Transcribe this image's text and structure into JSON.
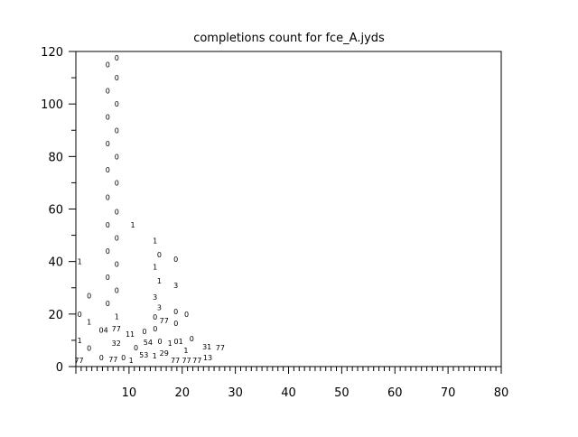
{
  "chart_data": {
    "type": "scatter",
    "title": "completions count for fce_A.jyds",
    "xlabel": "",
    "ylabel": "",
    "xlim": [
      0,
      80
    ],
    "ylim": [
      0,
      120
    ],
    "x_ticks": [
      10,
      20,
      30,
      40,
      50,
      60,
      70,
      80
    ],
    "y_ticks": [
      0,
      20,
      40,
      60,
      80,
      100,
      120
    ],
    "grid": false,
    "points": [
      {
        "x": 6,
        "y": 115,
        "label": "0"
      },
      {
        "x": 6,
        "y": 105,
        "label": "0"
      },
      {
        "x": 6,
        "y": 95,
        "label": "0"
      },
      {
        "x": 6,
        "y": 85,
        "label": "0"
      },
      {
        "x": 6,
        "y": 75,
        "label": "0"
      },
      {
        "x": 6,
        "y": 64.5,
        "label": "0"
      },
      {
        "x": 6,
        "y": 54,
        "label": "0"
      },
      {
        "x": 6,
        "y": 44,
        "label": "0"
      },
      {
        "x": 6,
        "y": 34,
        "label": "0"
      },
      {
        "x": 6,
        "y": 24,
        "label": "0"
      },
      {
        "x": 7.7,
        "y": 120,
        "label": "0"
      },
      {
        "x": 7.7,
        "y": 110,
        "label": "0"
      },
      {
        "x": 7.7,
        "y": 100,
        "label": "0"
      },
      {
        "x": 7.7,
        "y": 90,
        "label": "0"
      },
      {
        "x": 7.7,
        "y": 80,
        "label": "0"
      },
      {
        "x": 7.7,
        "y": 70,
        "label": "0"
      },
      {
        "x": 7.7,
        "y": 59,
        "label": "0"
      },
      {
        "x": 7.7,
        "y": 49,
        "label": "0"
      },
      {
        "x": 7.7,
        "y": 39,
        "label": "0"
      },
      {
        "x": 7.7,
        "y": 29,
        "label": "0"
      },
      {
        "x": 7.7,
        "y": 19,
        "label": "1"
      },
      {
        "x": 0.7,
        "y": 40,
        "label": "1"
      },
      {
        "x": 10.7,
        "y": 54,
        "label": "1"
      },
      {
        "x": 2.5,
        "y": 27,
        "label": "0"
      },
      {
        "x": 0.7,
        "y": 20,
        "label": "0"
      },
      {
        "x": 2.5,
        "y": 17,
        "label": "1"
      },
      {
        "x": 5.2,
        "y": 14,
        "label": "04"
      },
      {
        "x": 0.7,
        "y": 10,
        "label": "1"
      },
      {
        "x": 2.5,
        "y": 7,
        "label": "0"
      },
      {
        "x": 7.6,
        "y": 9,
        "label": "32"
      },
      {
        "x": 4.8,
        "y": 3.5,
        "label": "0"
      },
      {
        "x": 6,
        "y": 2.8,
        "label": "77"
      },
      {
        "x": 6.9,
        "y": 3.5,
        "label": "0"
      },
      {
        "x": 0.6,
        "y": 0,
        "label": "77"
      },
      {
        "x": 14.9,
        "y": 48,
        "label": "1"
      },
      {
        "x": 15.7,
        "y": 45,
        "label": "0"
      },
      {
        "x": 18.8,
        "y": 41,
        "label": "0"
      },
      {
        "x": 14.9,
        "y": 38,
        "label": "1"
      },
      {
        "x": 15.7,
        "y": 35,
        "label": "1"
      },
      {
        "x": 18.8,
        "y": 31,
        "label": "3"
      },
      {
        "x": 14.9,
        "y": 26.5,
        "label": "3"
      },
      {
        "x": 15.7,
        "y": 25,
        "label": "3"
      },
      {
        "x": 18.8,
        "y": 21,
        "label": "0"
      },
      {
        "x": 19.8,
        "y": 20,
        "label": "0"
      },
      {
        "x": 10.2,
        "y": 12.4,
        "label": "11"
      },
      {
        "x": 12.9,
        "y": 13.4,
        "label": "0"
      },
      {
        "x": 13.9,
        "y": 14.4,
        "label": "0"
      },
      {
        "x": 14.9,
        "y": 16.5,
        "label": "0"
      },
      {
        "x": 16.6,
        "y": 17.5,
        "label": "77"
      },
      {
        "x": 17.8,
        "y": 16.5,
        "label": "0"
      },
      {
        "x": 15.8,
        "y": 14.4,
        "label": "0"
      },
      {
        "x": 19.3,
        "y": 9.7,
        "label": "01"
      },
      {
        "x": 20.7,
        "y": 8.6,
        "label": "1"
      },
      {
        "x": 21.8,
        "y": 10.7,
        "label": "0"
      },
      {
        "x": 16.6,
        "y": 7.6,
        "label": "29"
      },
      {
        "x": 17.7,
        "y": 6.5,
        "label": "1"
      },
      {
        "x": 14.8,
        "y": 6.5,
        "label": "1"
      },
      {
        "x": 13.8,
        "y": 4.5,
        "label": "53"
      },
      {
        "x": 15.6,
        "y": 4.5,
        "label": "54"
      },
      {
        "x": 10.4,
        "y": 2.4,
        "label": "1"
      },
      {
        "x": 11.3,
        "y": 2.4,
        "label": "0"
      },
      {
        "x": 12.7,
        "y": 2.4,
        "label": "77"
      },
      {
        "x": 24.8,
        "y": 3.4,
        "label": "13"
      },
      {
        "x": 18.7,
        "y": 0,
        "label": "77"
      },
      {
        "x": 19.8,
        "y": 0,
        "label": "77"
      },
      {
        "x": 21.6,
        "y": 0.4,
        "label": "31"
      },
      {
        "x": 22.8,
        "y": 0,
        "label": "77"
      },
      {
        "x": 24.1,
        "y": 0,
        "label": "77"
      }
    ]
  }
}
